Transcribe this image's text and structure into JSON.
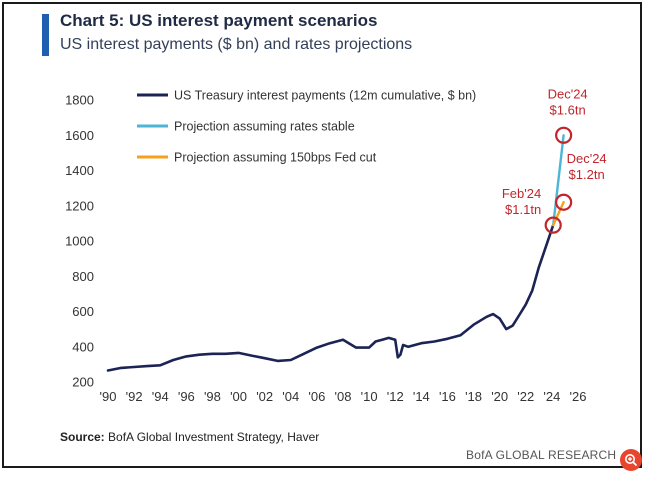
{
  "header": {
    "title": "Chart 5: US interest payment scenarios",
    "subtitle": "US interest payments ($ bn) and rates projections"
  },
  "colors": {
    "accent": "#1f5fb0",
    "main_series": "#1c2355",
    "stable": "#4db6d6",
    "cut": "#f4a21c",
    "marker": "#c0262c",
    "annotation": "#c0262c"
  },
  "footer": {
    "source_label": "Source:",
    "source_text": " BofA Global Investment Strategy, Haver",
    "credit": "BofA GLOBAL RESEARCH"
  },
  "chart_data": {
    "type": "line",
    "title": "Chart 5: US interest payment scenarios",
    "xlabel": "",
    "ylabel": "",
    "xlim": [
      1990,
      2026
    ],
    "ylim": [
      200,
      1800
    ],
    "yticks": [
      200,
      400,
      600,
      800,
      1000,
      1200,
      1400,
      1600,
      1800
    ],
    "ytick_labels": [
      "200",
      "400",
      "600",
      "800",
      "1000",
      "1200",
      "1400",
      "1600",
      "1800"
    ],
    "xticks": [
      1990,
      1992,
      1994,
      1996,
      1998,
      2000,
      2002,
      2004,
      2006,
      2008,
      2010,
      2012,
      2014,
      2016,
      2018,
      2020,
      2022,
      2024,
      2026
    ],
    "xtick_labels": [
      "'90",
      "'92",
      "'94",
      "'96",
      "'98",
      "'00",
      "'02",
      "'04",
      "'06",
      "'08",
      "'10",
      "'12",
      "'14",
      "'16",
      "'18",
      "'20",
      "'22",
      "'24",
      "'26"
    ],
    "legend_position": "top-left",
    "series": [
      {
        "name": "US Treasury interest payments (12m cumulative, $ bn)",
        "color": "#1c2355",
        "x": [
          1990,
          1991,
          1992,
          1993,
          1994,
          1995,
          1996,
          1997,
          1998,
          1999,
          2000,
          2001,
          2002,
          2003,
          2004,
          2005,
          2006,
          2007,
          2008,
          2009,
          2010,
          2010.5,
          2011,
          2011.5,
          2012,
          2012.2,
          2012.4,
          2012.6,
          2013,
          2014,
          2015,
          2016,
          2017,
          2018,
          2019,
          2019.5,
          2020,
          2020.5,
          2021,
          2021.5,
          2022,
          2022.5,
          2023,
          2023.5,
          2024.1
        ],
        "y": [
          265,
          280,
          285,
          290,
          295,
          325,
          345,
          355,
          360,
          360,
          365,
          350,
          335,
          320,
          325,
          360,
          395,
          420,
          440,
          395,
          395,
          430,
          440,
          450,
          440,
          340,
          355,
          410,
          400,
          420,
          430,
          445,
          465,
          525,
          570,
          585,
          560,
          500,
          520,
          580,
          640,
          720,
          850,
          960,
          1090
        ]
      },
      {
        "name": "Projection assuming rates stable",
        "color": "#4db6d6",
        "x": [
          2024.1,
          2024.9
        ],
        "y": [
          1090,
          1600
        ]
      },
      {
        "name": "Projection assuming 150bps Fed cut",
        "color": "#f4a21c",
        "x": [
          2024.1,
          2024.9
        ],
        "y": [
          1090,
          1220
        ]
      }
    ],
    "annotations": [
      {
        "x": 2024.1,
        "y": 1090,
        "line1": "Feb'24",
        "line2": "$1.1tn",
        "side": "left"
      },
      {
        "x": 2024.9,
        "y": 1600,
        "line1": "Dec'24",
        "line2": "$1.6tn",
        "side": "above"
      },
      {
        "x": 2024.9,
        "y": 1220,
        "line1": "Dec'24",
        "line2": "$1.2tn",
        "side": "right"
      }
    ]
  }
}
